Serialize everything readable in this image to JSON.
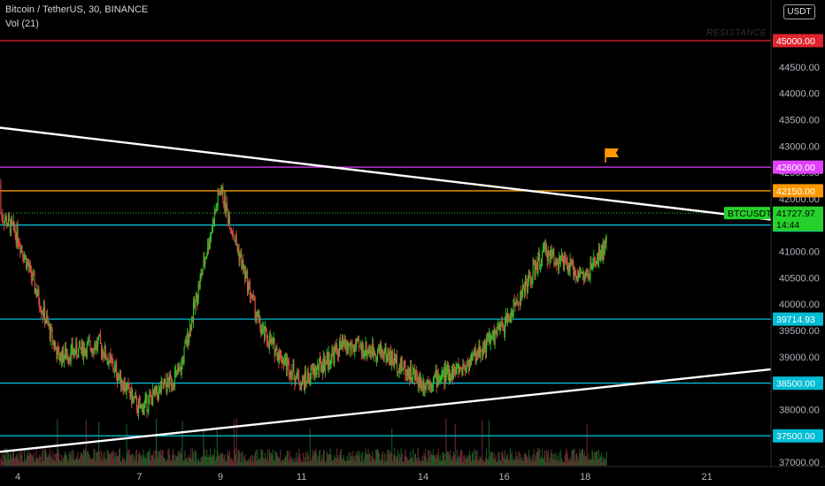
{
  "header": {
    "title": "Bitcoin / TetherUS, 30, BINANCE",
    "volume": "Vol (21)"
  },
  "currency_button": "USDT",
  "annotations": {
    "resistance": "RESISTANCE"
  },
  "colors": {
    "background": "#000000",
    "up": "#26c924",
    "down": "#e04a4a",
    "trendline": "#ffffff",
    "level_45000": "#e0242e",
    "level_42600": "#e040fb",
    "level_42150": "#ff9800",
    "level_cyan": "#00bcd4",
    "current_price": "#25d12a",
    "flag": "#ff9800"
  },
  "icons": {
    "flag": "flag-icon"
  },
  "chart_data": {
    "type": "candlestick",
    "symbol": "BTCUSDT",
    "interval": "30",
    "exchange": "BINANCE",
    "ylim": [
      36900,
      46050
    ],
    "y_ticks": [
      "37000.00",
      "37500.00",
      "38000.00",
      "38500.00",
      "39000.00",
      "39500.00",
      "40000.00",
      "40500.00",
      "41000.00",
      "41500.00",
      "42000.00",
      "42500.00",
      "43000.00",
      "43500.00",
      "44000.00",
      "44500.00",
      "45000.00"
    ],
    "x_ticks": [
      "4",
      "7",
      "9",
      "11",
      "14",
      "16",
      "18",
      "21"
    ],
    "horizontal_levels": [
      {
        "price": 45000.0,
        "label": "45000.00",
        "color": "#e0242e"
      },
      {
        "price": 42600.0,
        "label": "42600.00",
        "color": "#e040fb"
      },
      {
        "price": 42150.0,
        "label": "42150.00",
        "color": "#ff9800"
      },
      {
        "price": 41500.0,
        "label": "41500.00",
        "color": "#00bcd4"
      },
      {
        "price": 39714.93,
        "label": "39714.93",
        "color": "#00bcd4"
      },
      {
        "price": 38500.0,
        "label": "38500.00",
        "color": "#00bcd4"
      },
      {
        "price": 37500.0,
        "label": "37500.00",
        "color": "#00bcd4"
      }
    ],
    "current_price": {
      "symbol": "BTCUSDT",
      "price": "41727.97",
      "countdown": "14:44"
    },
    "trendlines": [
      {
        "name": "descending",
        "from": {
          "date": "Feb 3",
          "price": 43400
        },
        "to": {
          "date": "Feb 20",
          "price": 41840
        }
      },
      {
        "name": "ascending",
        "from": {
          "date": "Feb 3",
          "price": 37150
        },
        "to": {
          "date": "Feb 20",
          "price": 38550
        }
      }
    ],
    "price_path": [
      {
        "date": "Feb 3",
        "price": 42300
      },
      {
        "date": "Feb 4",
        "price": 41300
      },
      {
        "date": "Feb 5",
        "price": 39000
      },
      {
        "date": "Feb 6",
        "price": 39250
      },
      {
        "date": "Feb 7",
        "price": 38000
      },
      {
        "date": "Feb 8",
        "price": 38700
      },
      {
        "date": "Feb 9",
        "price": 42200
      },
      {
        "date": "Feb 10",
        "price": 39500
      },
      {
        "date": "Feb 11",
        "price": 38500
      },
      {
        "date": "Feb 12",
        "price": 39200
      },
      {
        "date": "Feb 13",
        "price": 39100
      },
      {
        "date": "Feb 14",
        "price": 38500
      },
      {
        "date": "Feb 15",
        "price": 38800
      },
      {
        "date": "Feb 16",
        "price": 39600
      },
      {
        "date": "Feb 17",
        "price": 41000
      },
      {
        "date": "Feb 18",
        "price": 40500
      },
      {
        "date": "Feb 19",
        "price": 41730
      }
    ]
  }
}
